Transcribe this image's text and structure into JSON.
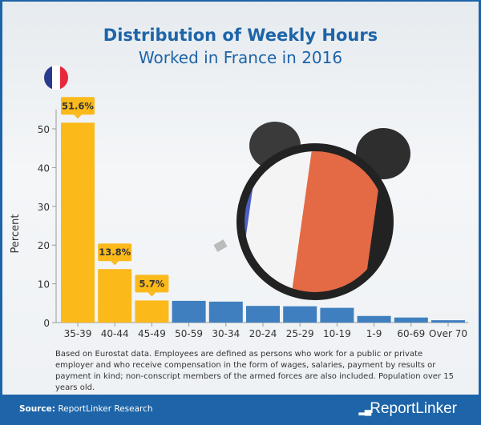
{
  "header": {
    "title": "Distribution of Weekly Hours",
    "subtitle": "Worked in France in 2016"
  },
  "flag_icon": "france-flag-icon",
  "colors": {
    "brand": "#1d64a8",
    "highlight_bar": "#fbb91a",
    "regular_bar": "#3f7fbf"
  },
  "chart_data": {
    "type": "bar",
    "title": "Distribution of Weekly Hours Worked in France in 2016",
    "xlabel": "",
    "ylabel": "Percent",
    "ylim": [
      0,
      55
    ],
    "yticks": [
      0,
      10,
      20,
      30,
      40,
      50
    ],
    "categories": [
      "35-39",
      "40-44",
      "45-49",
      "50-59",
      "30-34",
      "20-24",
      "25-29",
      "10-19",
      "1-9",
      "60-69",
      "Over 70"
    ],
    "values": [
      51.6,
      13.8,
      5.7,
      5.6,
      5.4,
      4.3,
      4.2,
      3.8,
      1.7,
      1.3,
      0.6
    ],
    "highlighted": [
      true,
      true,
      true,
      false,
      false,
      false,
      false,
      false,
      false,
      false,
      false
    ],
    "data_labels": [
      "51.6%",
      "13.8%",
      "5.7%",
      null,
      null,
      null,
      null,
      null,
      null,
      null,
      null
    ],
    "grid": false
  },
  "note": "Based on Eurostat data. Employees are defined as persons who work for a public or private employer and who receive compensation in the form of wages, salaries, payment by results or payment in kind; non-conscript members of the armed forces are also included. Population over 15 years old.",
  "footer": {
    "source_label": "Source:",
    "source_value": "ReportLinker Research",
    "logo": "ReportLinker"
  }
}
